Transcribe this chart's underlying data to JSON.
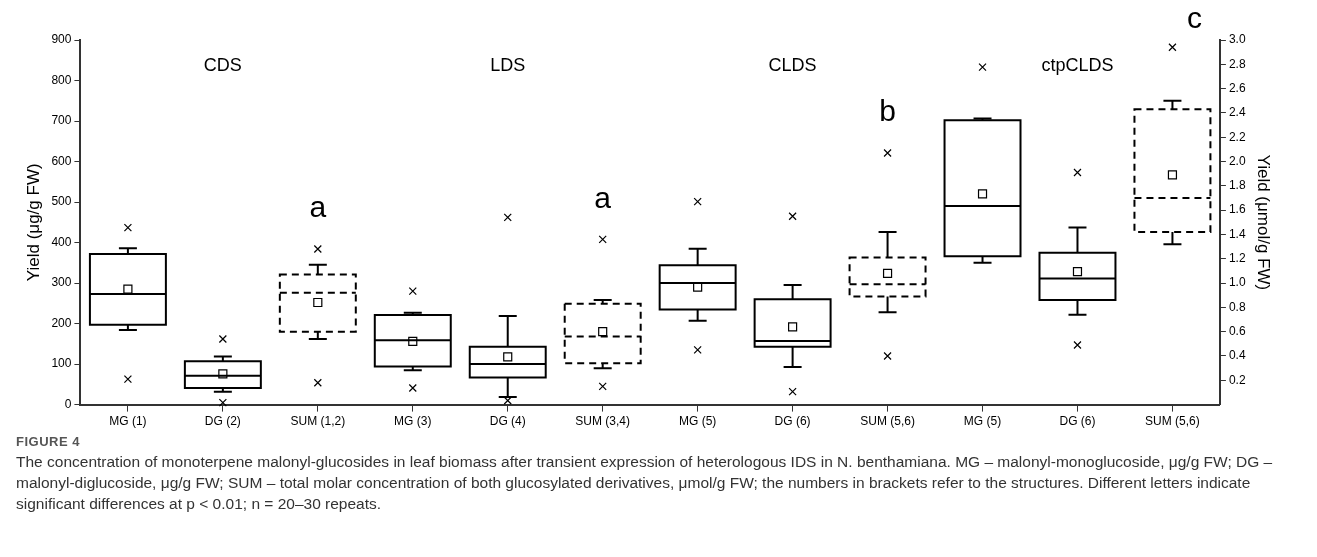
{
  "chart_data": {
    "type": "box",
    "ylabel": "Yield (μg/g FW)",
    "y2label": "Yield (μmol/g FW)",
    "categories": [
      "MG (1)",
      "DG (2)",
      "SUM (1,2)",
      "MG (3)",
      "DG (4)",
      "SUM (3,4)",
      "MG (5)",
      "DG (6)",
      "SUM (5,6)",
      "MG (5)",
      "DG (6)",
      "SUM (5,6)"
    ],
    "series": [
      {
        "color": "#000000",
        "line_style": "solid",
        "axis": "y",
        "boxes": [
          {
            "low": 184,
            "q1": 197,
            "median": 273,
            "q3": 372,
            "high": 386,
            "mean": 285,
            "outliers": [
              437,
              63
            ]
          },
          {
            "low": 32,
            "q1": 41,
            "median": 71,
            "q3": 107,
            "high": 119,
            "mean": 76,
            "outliers": [
              162,
              5
            ]
          },
          null,
          {
            "low": 85,
            "q1": 94,
            "median": 159,
            "q3": 221,
            "high": 227,
            "mean": 156,
            "outliers": [
              280,
              41
            ]
          },
          {
            "low": 19,
            "q1": 67,
            "median": 100,
            "q3": 143,
            "high": 219,
            "mean": 118,
            "outliers": [
              462,
              10
            ]
          },
          null,
          {
            "low": 207,
            "q1": 235,
            "median": 300,
            "q3": 344,
            "high": 385,
            "mean": 290,
            "outliers": [
              501,
              135
            ]
          },
          {
            "low": 93,
            "q1": 143,
            "median": 157,
            "q3": 260,
            "high": 295,
            "mean": 192,
            "outliers": [
              465,
              32
            ]
          },
          null,
          {
            "low": 350,
            "q1": 366,
            "median": 490,
            "q3": 702,
            "high": 706,
            "mean": 520,
            "outliers": [
              833
            ]
          },
          {
            "low": 222,
            "q1": 258,
            "median": 311,
            "q3": 375,
            "high": 437,
            "mean": 328,
            "outliers": [
              573,
              147
            ]
          },
          null
        ]
      },
      {
        "color": "#000000",
        "line_style": "dashed",
        "axis": "y2",
        "boxes": [
          null,
          null,
          {
            "low": 0.54,
            "q1": 0.6,
            "median": 0.92,
            "q3": 1.07,
            "high": 1.15,
            "mean": 0.84,
            "outliers": [
              1.28,
              0.18
            ]
          },
          null,
          null,
          {
            "low": 0.3,
            "q1": 0.34,
            "median": 0.56,
            "q3": 0.83,
            "high": 0.86,
            "mean": 0.6,
            "outliers": [
              1.36,
              0.15
            ]
          },
          null,
          null,
          {
            "low": 0.76,
            "q1": 0.89,
            "median": 0.99,
            "q3": 1.21,
            "high": 1.42,
            "mean": 1.08,
            "outliers": [
              2.07,
              0.4
            ]
          },
          null,
          null,
          {
            "low": 1.32,
            "q1": 1.42,
            "median": 1.7,
            "q3": 2.43,
            "high": 2.5,
            "mean": 1.89,
            "outliers": [
              2.94
            ]
          }
        ]
      }
    ],
    "ylim": [
      0,
      900
    ],
    "yticks": [
      0,
      100,
      200,
      300,
      400,
      500,
      600,
      700,
      800,
      900
    ],
    "y2lim": [
      0,
      3
    ],
    "y2ticks": [
      0.2,
      0.4,
      0.6,
      0.8,
      {
        "value": 1,
        "label": "1.0"
      },
      1.2,
      1.4,
      1.6,
      1.8,
      {
        "value": 2,
        "label": "2.0"
      },
      2.2,
      2.4,
      2.6,
      2.8,
      {
        "value": 3,
        "label": "3.0"
      }
    ],
    "grid": false,
    "annotations": [
      "CDS",
      "a",
      "LDS",
      "a",
      "CLDS",
      "b",
      "ctpCLDS",
      "c",
      "FIGURE 4",
      "The concentration of monoterpene malonyl-glucosides in leaf biomass after transient expression of heterologous IDS in N. benthamiana. MG – malonyl-monoglucoside, μg/g FW; DG – malonyl-diglucoside, μg/g FW; SUM – total molar concentration of both glucosylated derivatives, μmol/g FW; the numbers in brackets refer to the structures. Different letters indicate significant differences at p < 0.01; n = 20–30 repeats."
    ]
  }
}
